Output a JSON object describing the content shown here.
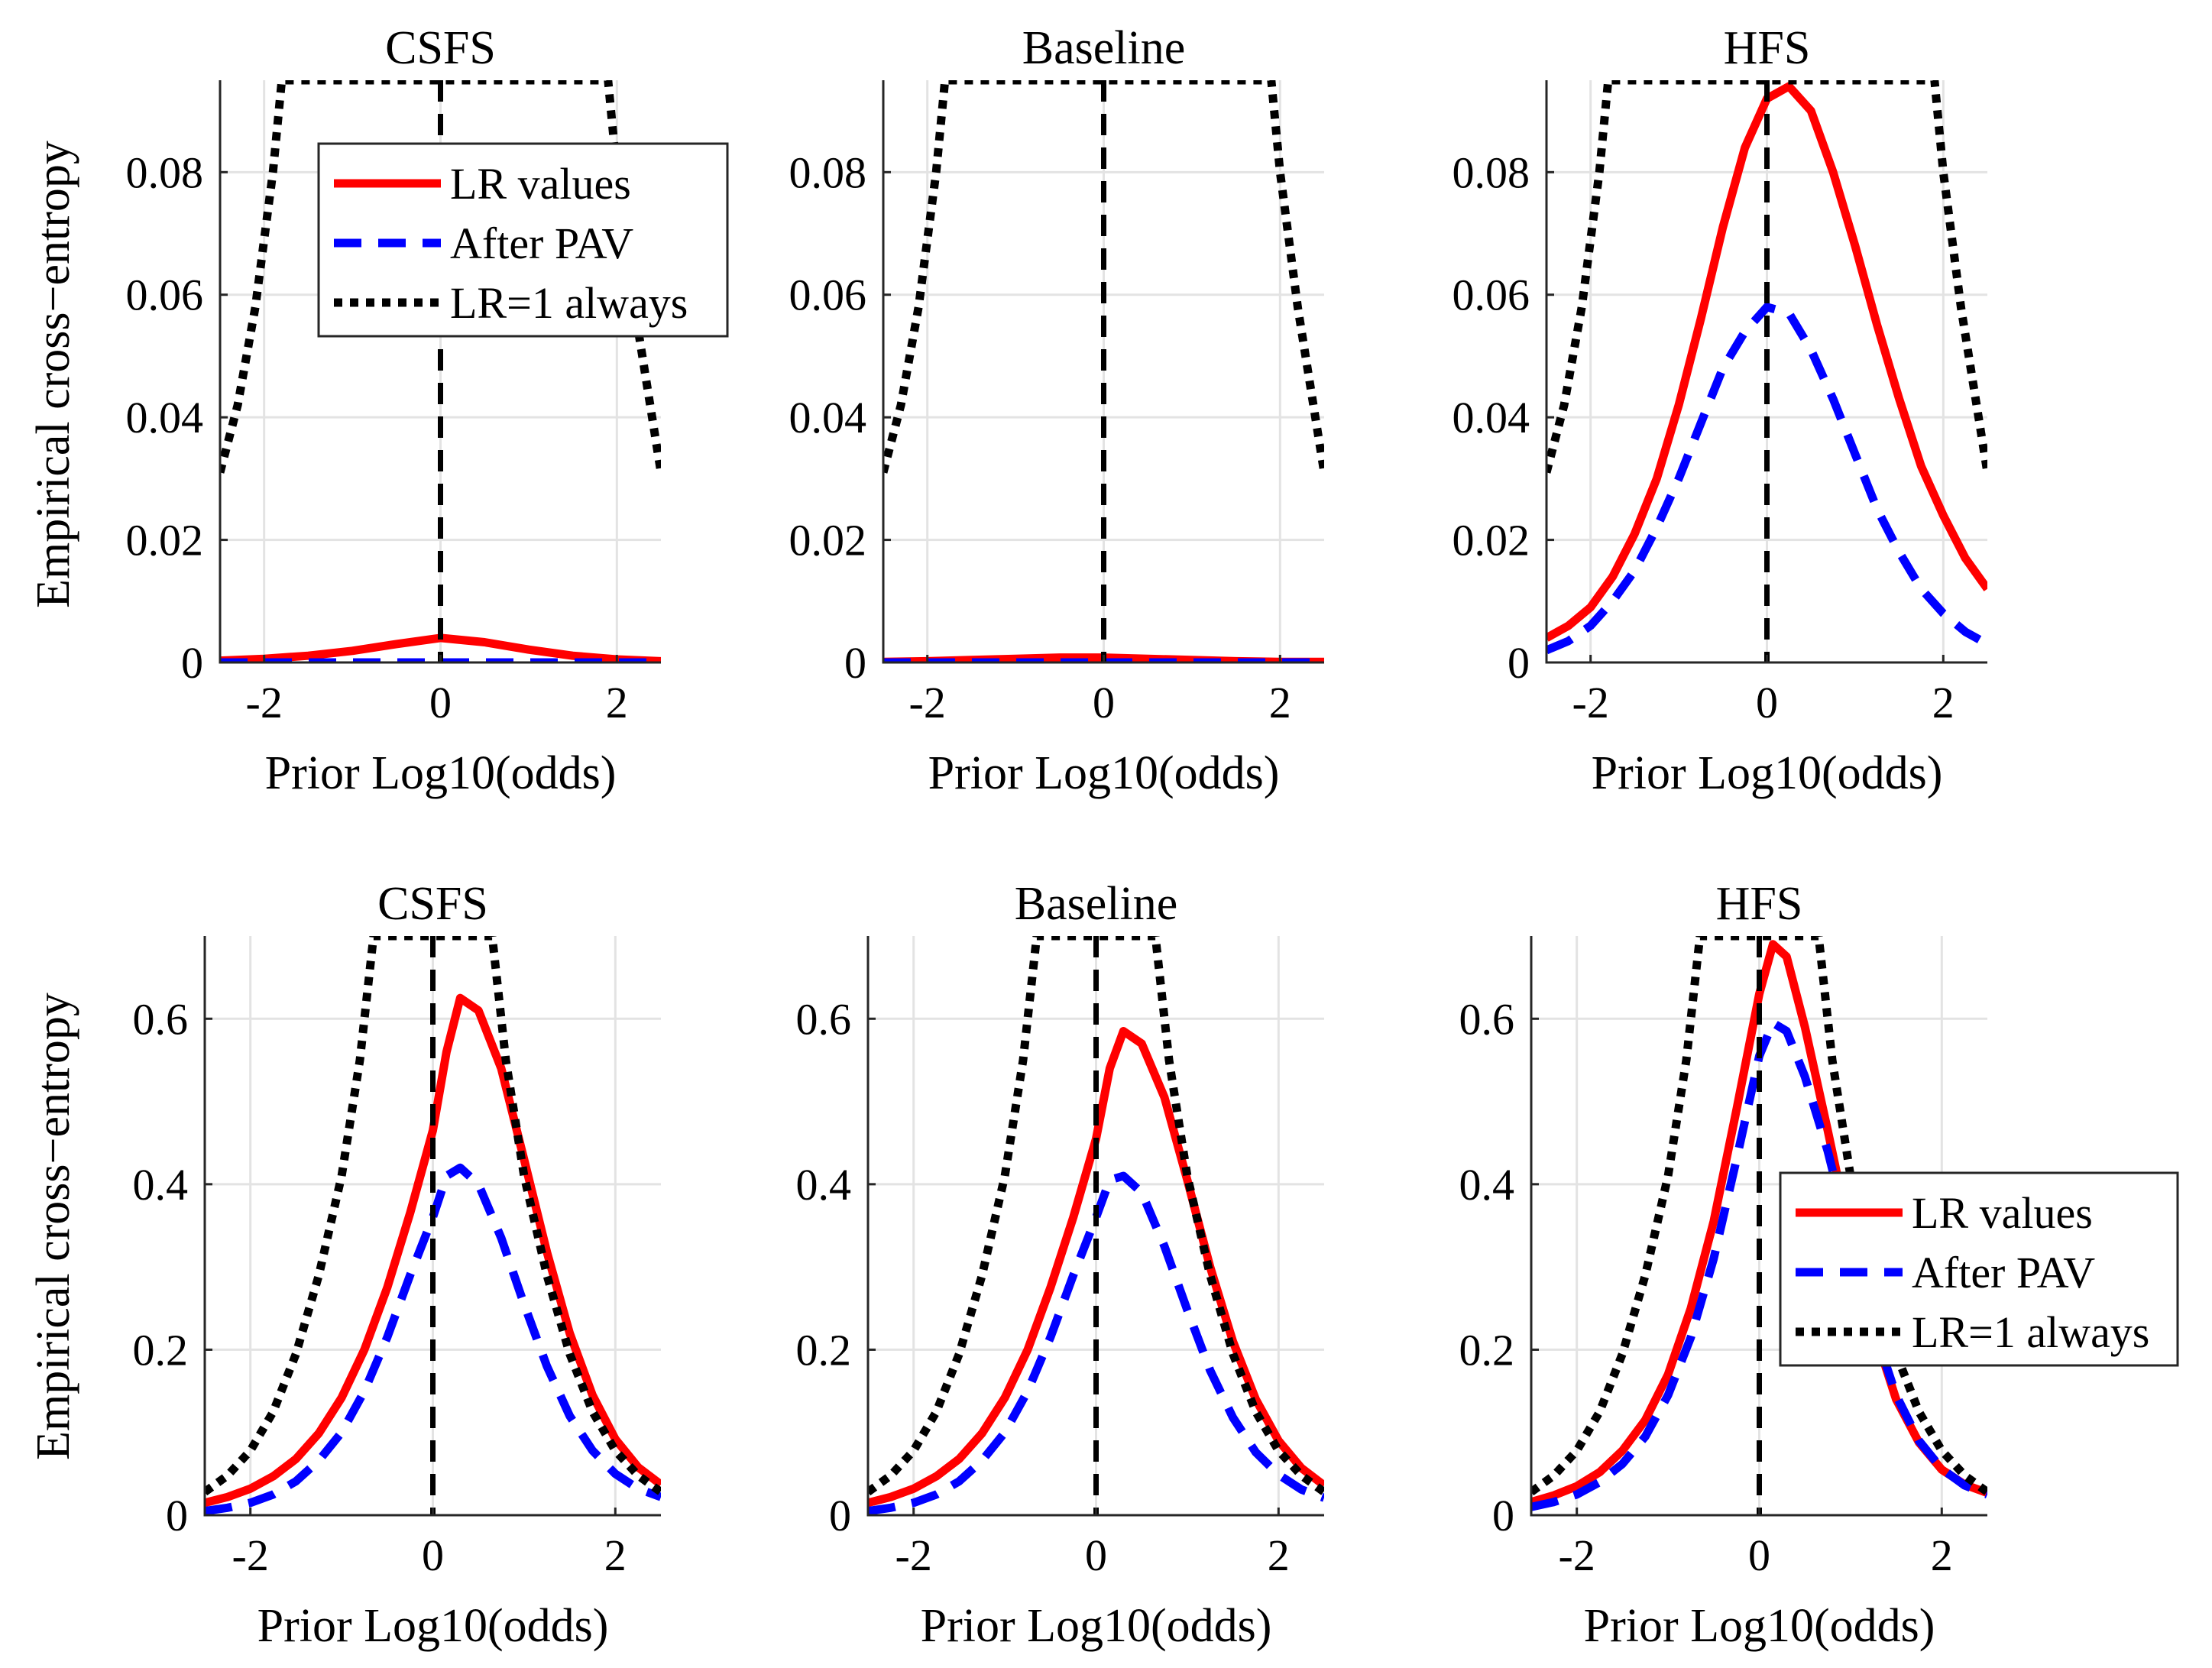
{
  "figure": {
    "ylabel_top": "Empirical cross−entropy",
    "ylabel_bottom": "Empirical cross−entropy"
  },
  "chart_data": [
    {
      "id": "top-csfs",
      "type": "line",
      "title": "CSFS",
      "xlabel": "Prior Log10(odds)",
      "xlim": [
        -2.5,
        2.5
      ],
      "ylim": [
        0,
        0.095
      ],
      "xticks": [
        -2,
        0,
        2
      ],
      "xtick_labels": [
        "-2",
        "0",
        "2"
      ],
      "yticks": [
        0,
        0.02,
        0.04,
        0.06,
        0.08
      ],
      "ytick_labels": [
        "0",
        "0.02",
        "0.04",
        "0.06",
        "0.08"
      ],
      "grid": true,
      "marker_x": 0,
      "legend": {
        "location": "top-right-inner",
        "entries": [
          "LR values",
          "After PAV",
          "LR=1 always"
        ]
      },
      "series": [
        {
          "name": "LR values",
          "style": "solid",
          "color": "#ff0000",
          "x": [
            -2.5,
            -2,
            -1.5,
            -1,
            -0.5,
            0,
            0.5,
            1,
            1.5,
            2,
            2.5
          ],
          "y": [
            0.0003,
            0.0006,
            0.0011,
            0.0019,
            0.003,
            0.004,
            0.0033,
            0.0021,
            0.0011,
            0.0005,
            0.0002
          ]
        },
        {
          "name": "After PAV",
          "style": "dashed",
          "color": "#0000ff",
          "x": [
            -2.5,
            -2,
            -1,
            0,
            1,
            2,
            2.5
          ],
          "y": [
            0,
            0,
            0,
            0,
            0,
            0,
            0
          ]
        },
        {
          "name": "LR=1 always",
          "style": "dotted",
          "color": "#000000",
          "x": [
            -2.5,
            -2.3,
            -2.1,
            -1.9,
            -1.8,
            1.9,
            2.0,
            2.2,
            2.5
          ],
          "y": [
            0.031,
            0.042,
            0.058,
            0.08,
            0.095,
            0.095,
            0.08,
            0.058,
            0.031
          ]
        }
      ]
    },
    {
      "id": "top-baseline",
      "type": "line",
      "title": "Baseline",
      "xlabel": "Prior Log10(odds)",
      "xlim": [
        -2.5,
        2.5
      ],
      "ylim": [
        0,
        0.095
      ],
      "xticks": [
        -2,
        0,
        2
      ],
      "xtick_labels": [
        "-2",
        "0",
        "2"
      ],
      "yticks": [
        0,
        0.02,
        0.04,
        0.06,
        0.08
      ],
      "ytick_labels": [
        "0",
        "0.02",
        "0.04",
        "0.06",
        "0.08"
      ],
      "grid": true,
      "marker_x": 0,
      "series": [
        {
          "name": "LR values",
          "style": "solid",
          "color": "#ff0000",
          "x": [
            -2.5,
            -2,
            -1.5,
            -1,
            -0.5,
            0,
            0.5,
            1,
            1.5,
            2,
            2.5
          ],
          "y": [
            0.0001,
            0.0002,
            0.0004,
            0.0006,
            0.0008,
            0.0008,
            0.0006,
            0.0004,
            0.0002,
            0.0001,
            0.0001
          ]
        },
        {
          "name": "After PAV",
          "style": "dashed",
          "color": "#0000ff",
          "x": [
            -2.5,
            -2,
            -1,
            0,
            1,
            2,
            2.5
          ],
          "y": [
            0,
            0,
            0,
            0,
            0,
            0,
            0
          ]
        },
        {
          "name": "LR=1 always",
          "style": "dotted",
          "color": "#000000",
          "x": [
            -2.5,
            -2.3,
            -2.1,
            -1.9,
            -1.8,
            1.9,
            2.0,
            2.2,
            2.5
          ],
          "y": [
            0.031,
            0.042,
            0.058,
            0.08,
            0.095,
            0.095,
            0.08,
            0.058,
            0.031
          ]
        }
      ]
    },
    {
      "id": "top-hfs",
      "type": "line",
      "title": "HFS",
      "xlabel": "Prior Log10(odds)",
      "xlim": [
        -2.5,
        2.5
      ],
      "ylim": [
        0,
        0.095
      ],
      "xticks": [
        -2,
        0,
        2
      ],
      "xtick_labels": [
        "-2",
        "0",
        "2"
      ],
      "yticks": [
        0,
        0.02,
        0.04,
        0.06,
        0.08
      ],
      "ytick_labels": [
        "0",
        "0.02",
        "0.04",
        "0.06",
        "0.08"
      ],
      "grid": true,
      "marker_x": 0,
      "series": [
        {
          "name": "LR values",
          "style": "solid",
          "color": "#ff0000",
          "x": [
            -2.5,
            -2.25,
            -2,
            -1.75,
            -1.5,
            -1.25,
            -1,
            -0.75,
            -0.5,
            -0.25,
            0,
            0.25,
            0.5,
            0.75,
            1,
            1.25,
            1.5,
            1.75,
            2,
            2.25,
            2.5
          ],
          "y": [
            0.004,
            0.006,
            0.009,
            0.014,
            0.021,
            0.03,
            0.042,
            0.056,
            0.071,
            0.084,
            0.092,
            0.094,
            0.09,
            0.08,
            0.068,
            0.055,
            0.043,
            0.032,
            0.024,
            0.017,
            0.012
          ]
        },
        {
          "name": "After PAV",
          "style": "dashed",
          "color": "#0000ff",
          "x": [
            -2.5,
            -2.25,
            -2,
            -1.75,
            -1.5,
            -1.25,
            -1,
            -0.75,
            -0.5,
            -0.25,
            0,
            0.25,
            0.5,
            0.75,
            1,
            1.25,
            1.5,
            1.75,
            2,
            2.25,
            2.5
          ],
          "y": [
            0.002,
            0.0035,
            0.006,
            0.01,
            0.015,
            0.022,
            0.03,
            0.039,
            0.048,
            0.054,
            0.058,
            0.057,
            0.051,
            0.043,
            0.034,
            0.025,
            0.018,
            0.012,
            0.008,
            0.005,
            0.003
          ]
        },
        {
          "name": "LR=1 always",
          "style": "dotted",
          "color": "#000000",
          "x": [
            -2.5,
            -2.3,
            -2.1,
            -1.9,
            -1.8,
            1.9,
            2.0,
            2.2,
            2.5
          ],
          "y": [
            0.031,
            0.042,
            0.058,
            0.08,
            0.095,
            0.095,
            0.08,
            0.058,
            0.031
          ]
        }
      ]
    },
    {
      "id": "bottom-csfs",
      "type": "line",
      "title": "CSFS",
      "xlabel": "Prior Log10(odds)",
      "xlim": [
        -2.5,
        2.5
      ],
      "ylim": [
        0,
        0.7
      ],
      "xticks": [
        -2,
        0,
        2
      ],
      "xtick_labels": [
        "-2",
        "0",
        "2"
      ],
      "yticks": [
        0,
        0.2,
        0.4,
        0.6
      ],
      "ytick_labels": [
        "0",
        "0.2",
        "0.4",
        "0.6"
      ],
      "grid": true,
      "marker_x": 0,
      "series": [
        {
          "name": "LR values",
          "style": "solid",
          "color": "#ff0000",
          "x": [
            -2.5,
            -2.25,
            -2,
            -1.75,
            -1.5,
            -1.25,
            -1,
            -0.75,
            -0.5,
            -0.25,
            0,
            0.15,
            0.3,
            0.5,
            0.75,
            1,
            1.25,
            1.5,
            1.75,
            2,
            2.25,
            2.5
          ],
          "y": [
            0.015,
            0.022,
            0.032,
            0.047,
            0.068,
            0.099,
            0.142,
            0.2,
            0.275,
            0.365,
            0.465,
            0.56,
            0.625,
            0.61,
            0.54,
            0.43,
            0.318,
            0.22,
            0.145,
            0.092,
            0.058,
            0.037
          ]
        },
        {
          "name": "After PAV",
          "style": "dashed",
          "color": "#0000ff",
          "x": [
            -2.5,
            -2.25,
            -2,
            -1.75,
            -1.5,
            -1.25,
            -1,
            -0.75,
            -0.5,
            -0.25,
            0,
            0.15,
            0.3,
            0.5,
            0.75,
            1,
            1.25,
            1.5,
            1.75,
            2,
            2.25,
            2.5
          ],
          "y": [
            0.005,
            0.009,
            0.015,
            0.025,
            0.041,
            0.066,
            0.1,
            0.15,
            0.215,
            0.29,
            0.36,
            0.41,
            0.42,
            0.4,
            0.335,
            0.255,
            0.18,
            0.12,
            0.078,
            0.05,
            0.032,
            0.022
          ]
        },
        {
          "name": "LR=1 always",
          "style": "dotted",
          "color": "#000000",
          "x": [
            -2.5,
            -2.25,
            -2,
            -1.75,
            -1.5,
            -1.25,
            -1,
            -0.8,
            -0.65,
            0.65,
            0.8,
            1,
            1.25,
            1.5,
            1.75,
            2,
            2.25,
            2.5
          ],
          "y": [
            0.028,
            0.048,
            0.078,
            0.125,
            0.195,
            0.29,
            0.41,
            0.55,
            0.7,
            0.7,
            0.55,
            0.41,
            0.29,
            0.195,
            0.125,
            0.078,
            0.048,
            0.028
          ]
        }
      ]
    },
    {
      "id": "bottom-baseline",
      "type": "line",
      "title": "Baseline",
      "xlabel": "Prior Log10(odds)",
      "xlim": [
        -2.5,
        2.5
      ],
      "ylim": [
        0,
        0.7
      ],
      "xticks": [
        -2,
        0,
        2
      ],
      "xtick_labels": [
        "-2",
        "0",
        "2"
      ],
      "yticks": [
        0,
        0.2,
        0.4,
        0.6
      ],
      "ytick_labels": [
        "0",
        "0.2",
        "0.4",
        "0.6"
      ],
      "grid": true,
      "marker_x": 0,
      "series": [
        {
          "name": "LR values",
          "style": "solid",
          "color": "#ff0000",
          "x": [
            -2.5,
            -2.25,
            -2,
            -1.75,
            -1.5,
            -1.25,
            -1,
            -0.75,
            -0.5,
            -0.25,
            0,
            0.15,
            0.3,
            0.5,
            0.75,
            1,
            1.25,
            1.5,
            1.75,
            2,
            2.25,
            2.5
          ],
          "y": [
            0.015,
            0.022,
            0.032,
            0.047,
            0.068,
            0.099,
            0.142,
            0.2,
            0.275,
            0.36,
            0.455,
            0.54,
            0.585,
            0.57,
            0.505,
            0.405,
            0.3,
            0.21,
            0.14,
            0.09,
            0.057,
            0.036
          ]
        },
        {
          "name": "After PAV",
          "style": "dashed",
          "color": "#0000ff",
          "x": [
            -2.5,
            -2.25,
            -2,
            -1.75,
            -1.5,
            -1.25,
            -1,
            -0.75,
            -0.5,
            -0.25,
            0,
            0.15,
            0.3,
            0.5,
            0.75,
            1,
            1.25,
            1.5,
            1.75,
            2,
            2.25,
            2.5
          ],
          "y": [
            0.005,
            0.009,
            0.015,
            0.025,
            0.041,
            0.066,
            0.1,
            0.15,
            0.215,
            0.29,
            0.36,
            0.405,
            0.41,
            0.39,
            0.325,
            0.248,
            0.175,
            0.118,
            0.076,
            0.049,
            0.031,
            0.021
          ]
        },
        {
          "name": "LR=1 always",
          "style": "dotted",
          "color": "#000000",
          "x": [
            -2.5,
            -2.25,
            -2,
            -1.75,
            -1.5,
            -1.25,
            -1,
            -0.8,
            -0.65,
            0.65,
            0.8,
            1,
            1.25,
            1.5,
            1.75,
            2,
            2.25,
            2.5
          ],
          "y": [
            0.028,
            0.048,
            0.078,
            0.125,
            0.195,
            0.29,
            0.41,
            0.55,
            0.7,
            0.7,
            0.55,
            0.41,
            0.29,
            0.195,
            0.125,
            0.078,
            0.048,
            0.028
          ]
        }
      ]
    },
    {
      "id": "bottom-hfs",
      "type": "line",
      "title": "HFS",
      "xlabel": "Prior Log10(odds)",
      "xlim": [
        -2.5,
        2.5
      ],
      "ylim": [
        0,
        0.7
      ],
      "xticks": [
        -2,
        0,
        2
      ],
      "xtick_labels": [
        "-2",
        "0",
        "2"
      ],
      "yticks": [
        0,
        0.2,
        0.4,
        0.6
      ],
      "ytick_labels": [
        "0",
        "0.2",
        "0.4",
        "0.6"
      ],
      "grid": true,
      "marker_x": 0,
      "legend": {
        "location": "bottom-right-outer",
        "entries": [
          "LR values",
          "After PAV",
          "LR=1 always"
        ]
      },
      "series": [
        {
          "name": "LR values",
          "style": "solid",
          "color": "#ff0000",
          "x": [
            -2.5,
            -2.25,
            -2,
            -1.75,
            -1.5,
            -1.25,
            -1,
            -0.75,
            -0.5,
            -0.25,
            0,
            0.15,
            0.3,
            0.5,
            0.75,
            1,
            1.25,
            1.5,
            1.75,
            2,
            2.25,
            2.5
          ],
          "y": [
            0.016,
            0.024,
            0.035,
            0.052,
            0.078,
            0.115,
            0.17,
            0.25,
            0.355,
            0.49,
            0.63,
            0.69,
            0.675,
            0.59,
            0.465,
            0.335,
            0.225,
            0.14,
            0.088,
            0.055,
            0.037,
            0.027
          ]
        },
        {
          "name": "After PAV",
          "style": "dashed",
          "color": "#0000ff",
          "x": [
            -2.5,
            -2.25,
            -2,
            -1.75,
            -1.5,
            -1.25,
            -1,
            -0.75,
            -0.5,
            -0.25,
            0,
            0.15,
            0.3,
            0.5,
            0.75,
            1,
            1.25,
            1.5,
            1.75,
            2,
            2.25,
            2.5
          ],
          "y": [
            0.01,
            0.016,
            0.025,
            0.04,
            0.062,
            0.095,
            0.145,
            0.215,
            0.31,
            0.43,
            0.555,
            0.595,
            0.585,
            0.53,
            0.44,
            0.33,
            0.228,
            0.145,
            0.09,
            0.056,
            0.036,
            0.025
          ]
        },
        {
          "name": "LR=1 always",
          "style": "dotted",
          "color": "#000000",
          "x": [
            -2.5,
            -2.25,
            -2,
            -1.75,
            -1.5,
            -1.25,
            -1,
            -0.8,
            -0.65,
            0.65,
            0.8,
            1,
            1.25,
            1.5,
            1.75,
            2,
            2.25,
            2.5
          ],
          "y": [
            0.028,
            0.048,
            0.078,
            0.125,
            0.195,
            0.29,
            0.41,
            0.55,
            0.7,
            0.7,
            0.55,
            0.41,
            0.29,
            0.195,
            0.125,
            0.078,
            0.048,
            0.028
          ]
        }
      ]
    }
  ]
}
